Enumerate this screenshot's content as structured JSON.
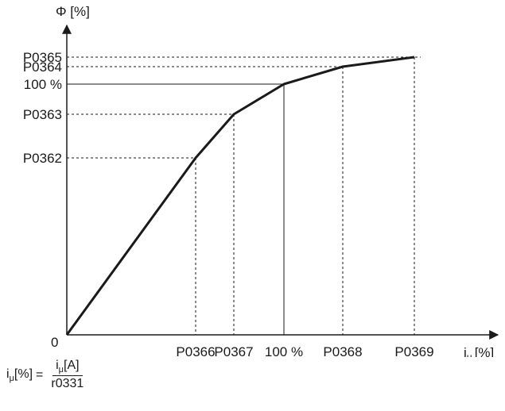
{
  "chart_data": {
    "type": "line",
    "ylabel": "Φ [%]",
    "xlabel_main": "i",
    "xlabel_sub": "μ",
    "xlabel_unit": "[%]",
    "origin_label": "0",
    "x_ticks": [
      "P0366",
      "P0367",
      "100 %",
      "P0368",
      "P0369"
    ],
    "y_ticks": [
      "P0362",
      "P0363",
      "100 %",
      "P0364",
      "P0365"
    ],
    "points": [
      {
        "x": "0",
        "y": "0"
      },
      {
        "x": "P0366",
        "y": "P0362"
      },
      {
        "x": "P0367",
        "y": "P0363"
      },
      {
        "x": "100 %",
        "y": "100 %"
      },
      {
        "x": "P0368",
        "y": "P0364"
      },
      {
        "x": "P0369",
        "y": "P0365"
      }
    ],
    "line_color": "#1a1a1a"
  },
  "formula": {
    "lhs_main": "i",
    "lhs_sub": "μ",
    "lhs_unit": "[%]",
    "equals": "=",
    "num_main": "i",
    "num_sub": "μ",
    "num_unit": "[A]",
    "den": "r0331"
  }
}
